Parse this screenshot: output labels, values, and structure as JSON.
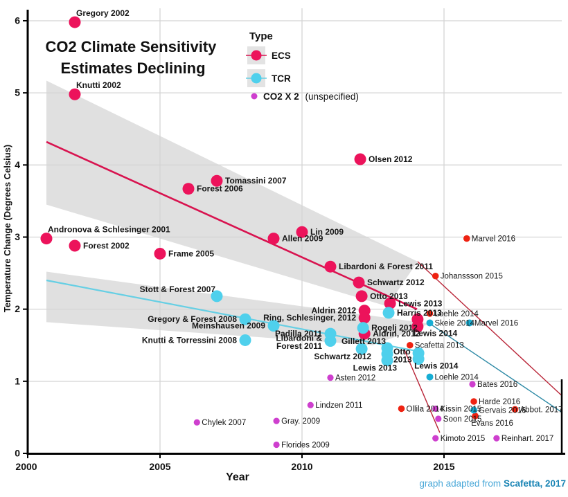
{
  "title": {
    "line1": "CO2 Climate Sensitivity",
    "line2": "Estimates Declining"
  },
  "axes": {
    "x_label": "Year",
    "y_label": "Temperature Change (Degrees Celsius)",
    "x_ticks": [
      2000,
      2005,
      2010,
      2015
    ],
    "y_ticks": [
      0,
      1,
      2,
      3,
      4,
      5,
      6
    ],
    "x_range": [
      2000,
      2019.3
    ],
    "y_range": [
      0,
      6.2
    ],
    "grid": true
  },
  "legend": {
    "title": "Type",
    "entries": [
      {
        "label": "ECS",
        "swatch": true
      },
      {
        "label": "TCR",
        "swatch": true
      },
      {
        "label": "CO2 X 2",
        "suffix": "(unspecified)",
        "swatch": false
      }
    ]
  },
  "caption": {
    "prefix": "graph adapted from ",
    "source": "Scafetta, 2017"
  },
  "colors": {
    "ecs": "#ec135b",
    "ecs_added": "#ee2211",
    "tcr": "#4fd0ec",
    "tcr_added": "#17aed4",
    "co2x2": "#ce3fce",
    "trend_ecs": "#d8134f",
    "trend_tcr": "#66cfe4",
    "ext_red": "#b92437",
    "ext_teal": "#2e8aa6",
    "band": "#e0e0e0",
    "grid": "#d4d4d4",
    "axis": "#000000",
    "label_dark": "#161616",
    "caption": "#4aa8d8",
    "caption_link": "#1b85b5"
  },
  "chart_data": {
    "type": "scatter",
    "title": "CO2 Climate Sensitivity Estimates Declining",
    "xlabel": "Year",
    "ylabel": "Temperature Change (Degrees Celsius)",
    "xlim": [
      2000,
      2019.3
    ],
    "ylim": [
      0,
      6.2
    ],
    "legend_position": "top-center",
    "series": [
      {
        "name": "ECS",
        "color_key": "ecs",
        "small_color_key": "ecs_added",
        "r": 8.5,
        "small_r": 4.8,
        "points": [
          {
            "label": "Gregory 2002",
            "x": 2002,
            "y": 5.98,
            "lp": "ar"
          },
          {
            "label": "Knutti 2002",
            "x": 2002,
            "y": 4.98,
            "lp": "ar"
          },
          {
            "label": "Andronova & Schlesinger 2001",
            "x": 2001,
            "y": 2.98,
            "lp": "ar"
          },
          {
            "label": "Forest 2002",
            "x": 2002,
            "y": 2.88,
            "lp": "r"
          },
          {
            "label": "Frame 2005",
            "x": 2005,
            "y": 2.77,
            "lp": "r"
          },
          {
            "label": "Forest 2006",
            "x": 2006,
            "y": 3.67,
            "lp": "r"
          },
          {
            "label": "Tomassini 2007",
            "x": 2007,
            "y": 3.78,
            "lp": "r"
          },
          {
            "label": "Allen 2009",
            "x": 2009,
            "y": 2.98,
            "lp": "r"
          },
          {
            "label": "Lin 2009",
            "x": 2010,
            "y": 3.07,
            "lp": "r"
          },
          {
            "label": "Olsen 2012",
            "x": 2012.05,
            "y": 4.08,
            "lp": "r"
          },
          {
            "label": "Libardoni & Forest 2011",
            "x": 2011,
            "y": 2.59,
            "lp": "r"
          },
          {
            "label": "Schwartz 2012",
            "x": 2012,
            "y": 2.37,
            "lp": "r"
          },
          {
            "label": "Otto 2013",
            "x": 2012.1,
            "y": 2.18,
            "lp": "r"
          },
          {
            "label": "Lewis 2013",
            "x": 2013.1,
            "y": 2.08,
            "lp": "r"
          },
          {
            "label": "Aldrin 2012",
            "x": 2012.2,
            "y": 1.98,
            "lp": "l"
          },
          {
            "label": "Ring, Schlesinger, 2012",
            "x": 2012.2,
            "y": 1.88,
            "lp": "l"
          },
          {
            "label": "Aldrin, 2012",
            "x": 2012.2,
            "y": 1.66,
            "lp": "r"
          },
          {
            "label": "",
            "x": 2014.07,
            "y": 1.86
          },
          {
            "label": "Lewis 2014",
            "x": 2014.07,
            "y": 1.76,
            "lp": "br"
          },
          {
            "label": "Marvel 2016",
            "x": 2015.8,
            "y": 2.98,
            "lp": "r",
            "small": true
          },
          {
            "label": "Johanssson 2015",
            "x": 2014.7,
            "y": 2.46,
            "lp": "r",
            "small": true
          },
          {
            "label": "Loehle 2014",
            "x": 2014.5,
            "y": 1.94,
            "lp": "r",
            "small": true
          },
          {
            "label": "Scafetta 2013",
            "x": 2013.8,
            "y": 1.5,
            "lp": "r",
            "small": true
          },
          {
            "label": "Ollila 2014",
            "x": 2013.5,
            "y": 0.62,
            "lp": "r",
            "small": true
          },
          {
            "label": "Harde 2016",
            "x": 2016.05,
            "y": 0.72,
            "lp": "r",
            "small": true
          },
          {
            "label": "Evans 2016",
            "x": 2016.1,
            "y": 0.52,
            "lp": "br",
            "small": true
          },
          {
            "label": "Abbot. 2017",
            "x": 2017.5,
            "y": 0.61,
            "lp": "r",
            "small": true
          }
        ]
      },
      {
        "name": "TCR",
        "color_key": "tcr",
        "small_color_key": "tcr_added",
        "r": 8.5,
        "small_r": 5,
        "points": [
          {
            "label": "Stott & Forest 2007",
            "x": 2007,
            "y": 2.18,
            "lp": "al"
          },
          {
            "label": "Gregory & Forest 2008",
            "x": 2008,
            "y": 1.86,
            "lp": "l"
          },
          {
            "label": "Meinshausen 2009",
            "x": 2009,
            "y": 1.77,
            "lp": "l"
          },
          {
            "label": "Knutti & Torressini 2008",
            "x": 2008,
            "y": 1.57,
            "lp": "l"
          },
          {
            "label": "Padilla 2011",
            "x": 2011,
            "y": 1.66,
            "lp": "l"
          },
          {
            "label": "Libardoni &\nForest 2011",
            "x": 2011,
            "y": 1.56,
            "lp": "l2"
          },
          {
            "label": "Schwartz 2012",
            "x": 2012.1,
            "y": 1.45,
            "lp": "bl"
          },
          {
            "label": "Rogelj 2012",
            "x": 2012.15,
            "y": 1.74,
            "lp": "r"
          },
          {
            "label": "Harris 2013",
            "x": 2013.05,
            "y": 1.95,
            "lp": "r"
          },
          {
            "label": "Gillett 2013",
            "x": 2013,
            "y": 1.46,
            "lp": "al"
          },
          {
            "label": "Otto\n2013",
            "x": 2013,
            "y": 1.38,
            "lp": "r2"
          },
          {
            "label": "Lewis 2013",
            "x": 2013,
            "y": 1.29,
            "lp": "bl"
          },
          {
            "label": "",
            "x": 2014.1,
            "y": 1.39
          },
          {
            "label": "Lewis 2014",
            "x": 2014.1,
            "y": 1.31,
            "lp": "br"
          },
          {
            "label": "Skeie 2014",
            "x": 2014.5,
            "y": 1.81,
            "lp": "r",
            "small": true
          },
          {
            "label": "Marvel 2016",
            "x": 2015.9,
            "y": 1.81,
            "lp": "r",
            "small": true
          },
          {
            "label": "Loehle 2014",
            "x": 2014.5,
            "y": 1.06,
            "lp": "r",
            "small": true
          },
          {
            "label": "Gervais 2016",
            "x": 2016.05,
            "y": 0.6,
            "lp": "r",
            "small": true
          }
        ]
      },
      {
        "name": "CO2 X 2 (unspecified)",
        "color_key": "co2x2",
        "r": 4.6,
        "small_r": 4.6,
        "points": [
          {
            "label": "Chylek 2007",
            "x": 2006.3,
            "y": 0.43,
            "lp": "r",
            "small": true
          },
          {
            "label": "Gray. 2009",
            "x": 2009.1,
            "y": 0.45,
            "lp": "r",
            "small": true
          },
          {
            "label": "Florides 2009",
            "x": 2009.1,
            "y": 0.12,
            "lp": "r",
            "small": true
          },
          {
            "label": "Lindzen 2011",
            "x": 2010.3,
            "y": 0.67,
            "lp": "r",
            "small": true
          },
          {
            "label": "Asten 2012",
            "x": 2011,
            "y": 1.05,
            "lp": "r",
            "small": true
          },
          {
            "label": "Kissin 2015",
            "x": 2014.7,
            "y": 0.62,
            "lp": "r",
            "small": true
          },
          {
            "label": "Soon 2015",
            "x": 2014.8,
            "y": 0.48,
            "lp": "r",
            "small": true
          },
          {
            "label": "Kimoto 2015",
            "x": 2014.7,
            "y": 0.21,
            "lp": "r",
            "small": true
          },
          {
            "label": "Bates 2016",
            "x": 2016,
            "y": 0.96,
            "lp": "r",
            "small": true
          },
          {
            "label": "Reinhart. 2017",
            "x": 2016.85,
            "y": 0.21,
            "lp": "r",
            "small": true
          }
        ]
      }
    ],
    "trend_lines": [
      {
        "name": "ecs-trend-line",
        "color_key": "trend_ecs",
        "width": 2.6,
        "points": [
          [
            2001,
            4.32
          ],
          [
            2014.05,
            2.0
          ]
        ]
      },
      {
        "name": "tcr-trend-line",
        "color_key": "trend_tcr",
        "width": 2.2,
        "points": [
          [
            2001,
            2.4
          ],
          [
            2014.3,
            1.4
          ]
        ]
      },
      {
        "name": "ecs-extension-line",
        "color_key": "ext_red",
        "width": 1.4,
        "points": [
          [
            2014.07,
            2.66
          ],
          [
            2019.15,
            0.8
          ]
        ]
      },
      {
        "name": "tcr-extension-line",
        "color_key": "ext_teal",
        "width": 1.4,
        "points": [
          [
            2014.5,
            1.8
          ],
          [
            2019.15,
            0.57
          ]
        ]
      },
      {
        "name": "steep-extension-line",
        "color_key": "ext_red",
        "width": 1.4,
        "points": [
          [
            2013.6,
            1.44
          ],
          [
            2014.85,
            0.29
          ]
        ]
      }
    ],
    "bands": [
      {
        "name": "ecs-confidence-band",
        "points": [
          [
            2001,
            5.17
          ],
          [
            2014.07,
            2.66
          ],
          [
            2013.0,
            2.04
          ],
          [
            2001,
            3.45
          ]
        ]
      },
      {
        "name": "tcr-confidence-band",
        "points": [
          [
            2001,
            2.52
          ],
          [
            2014.5,
            1.8
          ],
          [
            2012.5,
            1.5
          ],
          [
            2001,
            1.82
          ]
        ]
      }
    ]
  }
}
